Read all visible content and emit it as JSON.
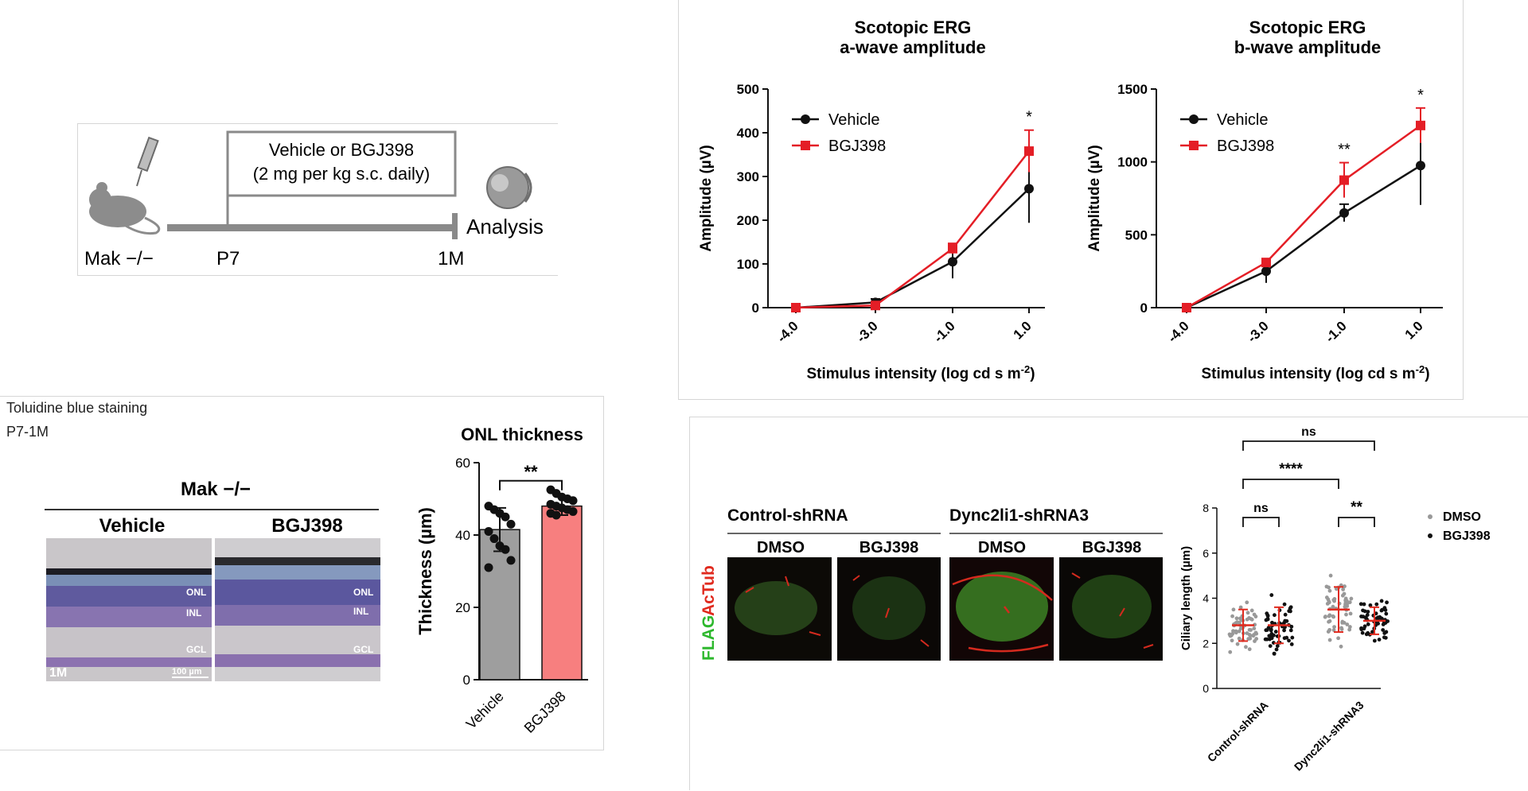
{
  "panel_a": {
    "mouse_label": "Mak −/−",
    "treatment_line1": "Vehicle or BGJ398",
    "treatment_line2": "(2 mg per kg s.c. daily)",
    "start_label": "P7",
    "end_label": "1M",
    "analysis_label": "Analysis"
  },
  "panel_c": {
    "stain_label": "Toluidine blue staining",
    "period_label": "P7-1M",
    "genotype_label": "Mak −/−",
    "vehicle_label": "Vehicle",
    "bgj_label": "BGJ398",
    "layer_onl": "ONL",
    "layer_inl": "INL",
    "layer_gcl": "GCL",
    "age_label": "1M",
    "scale_label": "100 µm"
  },
  "panel_d": {
    "group1_label": "Control-shRNA",
    "group2_label": "Dync2li1-shRNA3",
    "treat_dmso": "DMSO",
    "treat_bgj": "BGJ398",
    "stain_flag": "FLAG",
    "stain_actub": "AcTub"
  },
  "chart_data": [
    {
      "type": "line",
      "title": "Scotopic ERG\na-wave amplitude",
      "xlabel": "Stimulus intensity (log cd s m-2)",
      "ylabel": "Amplitude (µV)",
      "categories": [
        "-4.0",
        "-3.0",
        "-1.0",
        "1.0"
      ],
      "ylim": [
        0,
        500
      ],
      "yticks": [
        0,
        100,
        200,
        300,
        400,
        500
      ],
      "series": [
        {
          "name": "Vehicle",
          "color": "#111111",
          "values": [
            0,
            12,
            105,
            272
          ],
          "errors": [
            3,
            8,
            38,
            78
          ]
        },
        {
          "name": "BGJ398",
          "color": "#e41e26",
          "values": [
            0,
            5,
            135,
            358
          ],
          "errors": [
            2,
            5,
            12,
            48
          ]
        }
      ],
      "annotations": [
        {
          "category": "1.0",
          "text": "*"
        }
      ],
      "legend": "top-left"
    },
    {
      "type": "line",
      "title": "Scotopic ERG\nb-wave amplitude",
      "xlabel": "Stimulus intensity (log cd s m-2)",
      "ylabel": "Amplitude (µV)",
      "categories": [
        "-4.0",
        "-3.0",
        "-1.0",
        "1.0"
      ],
      "ylim": [
        0,
        1500
      ],
      "yticks": [
        0,
        500,
        1000,
        1500
      ],
      "series": [
        {
          "name": "Vehicle",
          "color": "#111111",
          "values": [
            0,
            250,
            650,
            975
          ],
          "errors": [
            5,
            80,
            60,
            270
          ]
        },
        {
          "name": "BGJ398",
          "color": "#e41e26",
          "values": [
            0,
            310,
            875,
            1250
          ],
          "errors": [
            5,
            25,
            120,
            120
          ]
        }
      ],
      "annotations": [
        {
          "category": "-1.0",
          "text": "**"
        },
        {
          "category": "1.0",
          "text": "*"
        }
      ],
      "legend": "top-left"
    },
    {
      "type": "bar",
      "title": "ONL thickness",
      "ylabel": "Thickness (µm)",
      "categories": [
        "Vehicle",
        "BGJ398"
      ],
      "values": [
        41.5,
        48
      ],
      "errors": [
        6,
        2.5
      ],
      "colors": [
        "#9e9e9e",
        "#f77f7f"
      ],
      "ylim": [
        0,
        60
      ],
      "yticks": [
        0,
        20,
        40,
        60
      ],
      "points": [
        [
          48,
          47,
          46,
          45,
          43,
          41,
          39,
          37,
          36,
          33,
          31
        ],
        [
          52.5,
          51.5,
          50.5,
          50,
          49.5,
          48.5,
          48,
          47.5,
          47,
          46.5,
          46,
          45.5
        ]
      ],
      "annotations": [
        {
          "between": [
            "Vehicle",
            "BGJ398"
          ],
          "text": "**"
        }
      ]
    },
    {
      "type": "scatter",
      "ylabel": "Ciliary length (µm)",
      "categories": [
        "Control-shRNA",
        "Dync2li1-shRNA3"
      ],
      "series": [
        {
          "name": "DMSO",
          "color": "#999999",
          "mean": [
            2.8,
            3.5
          ],
          "sd": [
            0.7,
            1.0
          ]
        },
        {
          "name": "BGJ398",
          "color": "#111111",
          "mean": [
            2.8,
            3.0
          ],
          "sd": [
            0.8,
            0.6
          ]
        }
      ],
      "ylim": [
        0,
        8
      ],
      "yticks": [
        0,
        2,
        4,
        6,
        8
      ],
      "annotations": [
        {
          "compare": [
            "Control-shRNA DMSO",
            "Control-shRNA BGJ398"
          ],
          "text": "ns"
        },
        {
          "compare": [
            "Dync2li1-shRNA3 DMSO",
            "Dync2li1-shRNA3 BGJ398"
          ],
          "text": "**"
        },
        {
          "compare": [
            "Control-shRNA DMSO",
            "Dync2li1-shRNA3 DMSO"
          ],
          "text": "****"
        },
        {
          "compare": [
            "Control-shRNA DMSO",
            "Dync2li1-shRNA3 BGJ398"
          ],
          "text": "ns"
        }
      ],
      "legend": "right"
    }
  ]
}
